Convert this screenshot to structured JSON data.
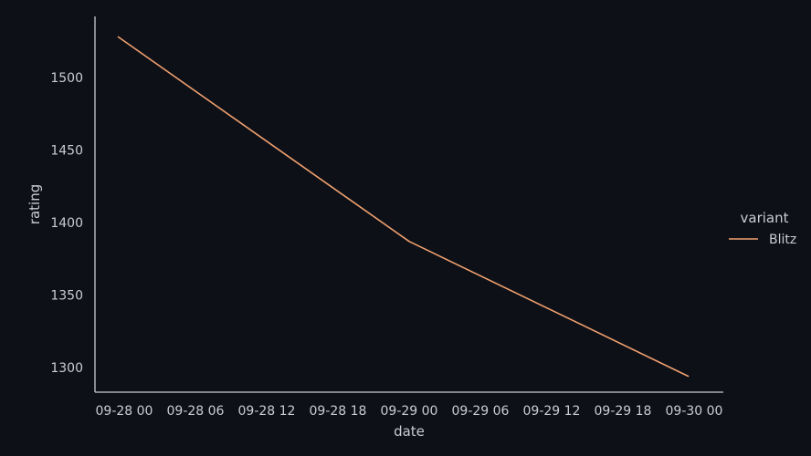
{
  "chart_data": {
    "type": "line",
    "xlabel": "date",
    "ylabel": "rating",
    "x_ticks": [
      "09-28 00",
      "09-28 06",
      "09-28 12",
      "09-28 18",
      "09-29 00",
      "09-29 06",
      "09-29 12",
      "09-29 18",
      "09-30 00"
    ],
    "xlim": [
      "2023-09-27 22:00",
      "2023-09-30 02:00"
    ],
    "y_ticks": [
      1300,
      1350,
      1400,
      1450,
      1500
    ],
    "ylim": [
      1282,
      1540
    ],
    "grid": false,
    "legend": {
      "title": "variant",
      "placement": "right"
    },
    "colors": {
      "background": "#0d1017",
      "axis": "#c9ccd3",
      "text": "#c9ccd3"
    },
    "series": [
      {
        "name": "Blitz",
        "color": "#f0a06e",
        "points": [
          {
            "x": "2023-09-27 23:30",
            "y": 1528
          },
          {
            "x": "2023-09-29 00:00",
            "y": 1387
          },
          {
            "x": "2023-09-29 23:30",
            "y": 1294
          }
        ]
      }
    ]
  }
}
